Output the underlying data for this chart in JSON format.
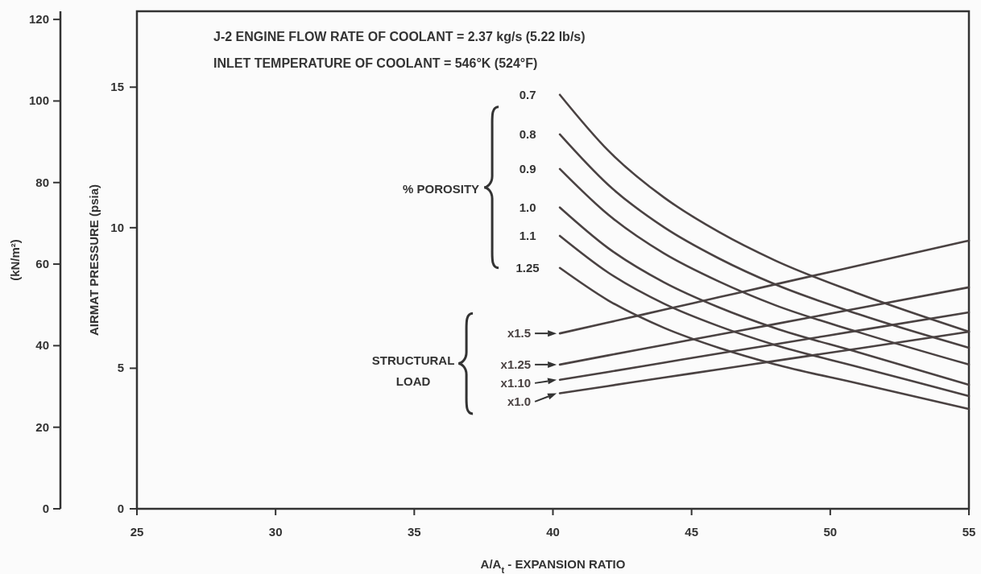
{
  "chart_data": {
    "type": "line",
    "title": "J-2 ENGINE FLOW RATE OF COOLANT = 2.37 kg/s (5.22 lb/s)",
    "subtitle": "INLET TEMPERATURE OF COOLANT = 546°K (524°F)",
    "xlabel": "A/A$_{t}$ - EXPANSION RATIO",
    "ylabel": "AIRMAT PRESSURE (psia)",
    "y2label": "(kN/m²)",
    "annotations": [
      "% POROSITY",
      "STRUCTURAL LOAD"
    ],
    "xlim": [
      25,
      55
    ],
    "xticks": [
      25,
      30,
      35,
      40,
      45,
      50,
      55
    ],
    "ylim": [
      0,
      17.7
    ],
    "yticks": [
      0,
      5,
      10,
      15
    ],
    "y2lim": [
      0,
      122
    ],
    "y2ticks": [
      0,
      20,
      40,
      60,
      80,
      100,
      120
    ],
    "grid": false,
    "legend": false,
    "marker": "none",
    "line_style": "solid",
    "x": [
      40.25,
      42,
      44,
      46,
      48,
      51,
      55
    ],
    "series": [
      {
        "name": "0.7",
        "color": "#4a4242",
        "values": [
          14.73,
          12.74,
          11.08,
          9.84,
          8.84,
          7.66,
          6.3
        ]
      },
      {
        "name": "0.8",
        "color": "#4a4242",
        "values": [
          13.32,
          11.52,
          10.02,
          8.9,
          7.99,
          6.93,
          5.73
        ]
      },
      {
        "name": "0.9",
        "color": "#4a4242",
        "values": [
          12.09,
          10.46,
          9.09,
          8.08,
          7.25,
          6.29,
          5.13
        ]
      },
      {
        "name": "1.0",
        "color": "#4a4242",
        "values": [
          10.72,
          9.27,
          8.06,
          7.16,
          6.43,
          5.57,
          4.41
        ]
      },
      {
        "name": "1.1",
        "color": "#4a4242",
        "values": [
          9.71,
          8.4,
          7.3,
          6.49,
          5.83,
          5.05,
          4.01
        ]
      },
      {
        "name": "1.25",
        "color": "#4a4242",
        "values": [
          8.57,
          7.41,
          6.44,
          5.72,
          5.14,
          4.46,
          3.55
        ]
      },
      {
        "name": "x1.5",
        "color": "#4a4242",
        "values": [
          6.24,
          6.63,
          7.08,
          7.53,
          7.98,
          8.65,
          9.54
        ]
      },
      {
        "name": "x1.25",
        "color": "#4a4242",
        "values": [
          5.13,
          5.46,
          5.83,
          6.2,
          6.57,
          7.13,
          7.88
        ]
      },
      {
        "name": "x1.10",
        "color": "#4a4242",
        "values": [
          4.59,
          4.87,
          5.2,
          5.53,
          5.85,
          6.34,
          6.99
        ]
      },
      {
        "name": "x1.0",
        "color": "#4a4242",
        "values": [
          4.11,
          4.37,
          4.67,
          4.96,
          5.26,
          5.7,
          6.3
        ]
      }
    ]
  }
}
